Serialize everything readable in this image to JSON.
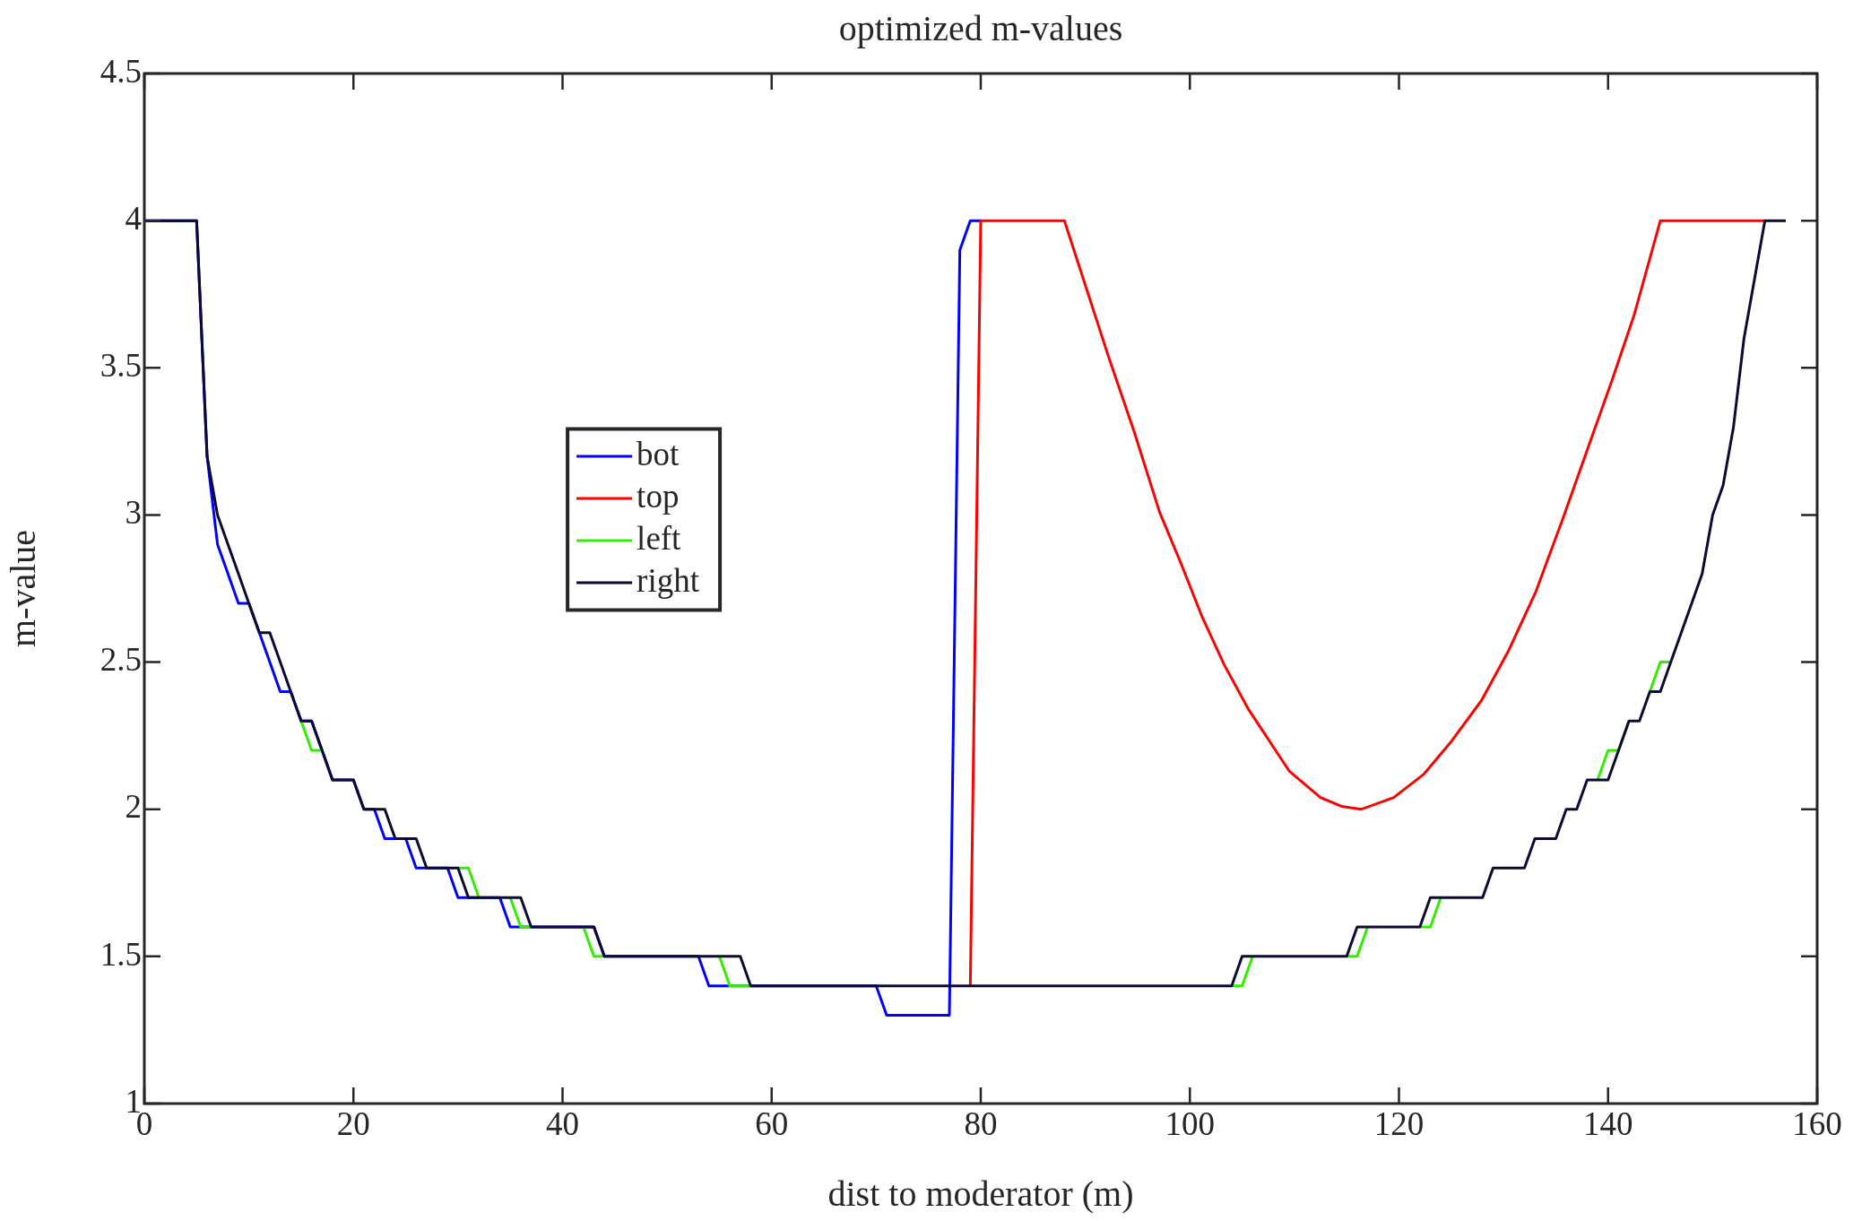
{
  "chart_data": {
    "type": "line",
    "title": "optimized m-values",
    "xlabel": "dist to moderator (m)",
    "ylabel": "m-value",
    "xlim": [
      0,
      160
    ],
    "xticks": [
      0,
      20,
      40,
      60,
      80,
      100,
      120,
      140,
      160
    ],
    "ylim": [
      1,
      4.5
    ],
    "yticks": [
      1,
      1.5,
      2,
      2.5,
      3,
      3.5,
      4,
      4.5
    ],
    "grid": false,
    "legend": "left",
    "series": [
      {
        "name": "bot",
        "color": "#0000ff",
        "x": [
          0,
          5,
          6,
          7,
          8,
          9,
          10,
          11,
          12,
          13,
          14,
          15,
          16,
          17,
          18,
          20,
          21,
          22,
          23,
          25,
          26,
          29,
          30,
          34,
          35,
          43,
          44,
          53,
          54,
          70,
          71,
          77,
          78,
          79,
          80
        ],
        "values": [
          4,
          4,
          3.2,
          2.9,
          2.8,
          2.7,
          2.7,
          2.6,
          2.5,
          2.4,
          2.4,
          2.3,
          2.3,
          2.2,
          2.1,
          2.1,
          2.0,
          2.0,
          1.9,
          1.9,
          1.8,
          1.8,
          1.7,
          1.7,
          1.6,
          1.6,
          1.5,
          1.5,
          1.4,
          1.4,
          1.3,
          1.3,
          3.9,
          4,
          4
        ]
      },
      {
        "name": "top",
        "color": "#ff0000",
        "x": [
          79,
          80,
          88,
          92.2,
          94.7,
          97.1,
          99.1,
          101.1,
          103.3,
          105.6,
          109.5,
          112.5,
          114.5,
          116.4,
          119.5,
          122.4,
          125,
          127.9,
          130.5,
          133.1,
          135.7,
          138.3,
          140.4,
          142.5,
          145,
          155
        ],
        "values": [
          1.4,
          4,
          4,
          3.54,
          3.28,
          3.01,
          2.84,
          2.66,
          2.49,
          2.34,
          2.13,
          2.04,
          2.01,
          2.0,
          2.04,
          2.12,
          2.23,
          2.37,
          2.54,
          2.74,
          2.99,
          3.25,
          3.46,
          3.68,
          4,
          4
        ]
      },
      {
        "name": "left",
        "color": "#33ee00",
        "x": [
          15,
          16,
          17,
          17.5,
          30,
          31,
          32,
          33,
          35,
          36,
          37,
          39,
          42,
          43,
          44,
          50,
          55,
          56,
          58,
          80,
          104,
          105,
          106,
          110,
          115,
          116,
          117,
          120,
          122,
          123,
          124,
          130,
          139,
          140,
          141,
          142,
          143,
          144,
          145,
          146
        ],
        "values": [
          2.3,
          2.2,
          2.2,
          null,
          1.8,
          1.8,
          1.7,
          null,
          1.7,
          1.6,
          1.6,
          null,
          1.6,
          1.5,
          1.5,
          null,
          1.5,
          1.4,
          1.4,
          null,
          1.4,
          1.4,
          1.5,
          null,
          1.5,
          1.5,
          1.6,
          null,
          1.6,
          1.6,
          1.7,
          null,
          2.1,
          2.2,
          2.2,
          2.3,
          null,
          2.4,
          2.5,
          2.5
        ]
      },
      {
        "name": "right",
        "color": "#0a0a33",
        "x": [
          0,
          5,
          6,
          7,
          8,
          9,
          10,
          11,
          12,
          13,
          14,
          15,
          16,
          17,
          18,
          20,
          21,
          23,
          24,
          26,
          27,
          30,
          31,
          36,
          37,
          43,
          44,
          57,
          58,
          104,
          105,
          115,
          116,
          122,
          123,
          128,
          129,
          132,
          133,
          135,
          136,
          137,
          138,
          140,
          142,
          143,
          144,
          145,
          146,
          147,
          148,
          149,
          150,
          151,
          152,
          153,
          155,
          157
        ],
        "values": [
          4,
          4,
          3.2,
          3.0,
          2.9,
          2.8,
          2.7,
          2.6,
          2.6,
          2.5,
          2.4,
          2.3,
          2.3,
          2.2,
          2.1,
          2.1,
          2.0,
          2.0,
          1.9,
          1.9,
          1.8,
          1.8,
          1.7,
          1.7,
          1.6,
          1.6,
          1.5,
          1.5,
          1.4,
          1.4,
          1.5,
          1.5,
          1.6,
          1.6,
          1.7,
          1.7,
          1.8,
          1.8,
          1.9,
          1.9,
          2.0,
          2.0,
          2.1,
          2.1,
          2.3,
          2.3,
          2.4,
          2.4,
          2.5,
          2.6,
          2.7,
          2.8,
          3.0,
          3.1,
          3.3,
          3.6,
          4,
          4
        ]
      }
    ]
  }
}
